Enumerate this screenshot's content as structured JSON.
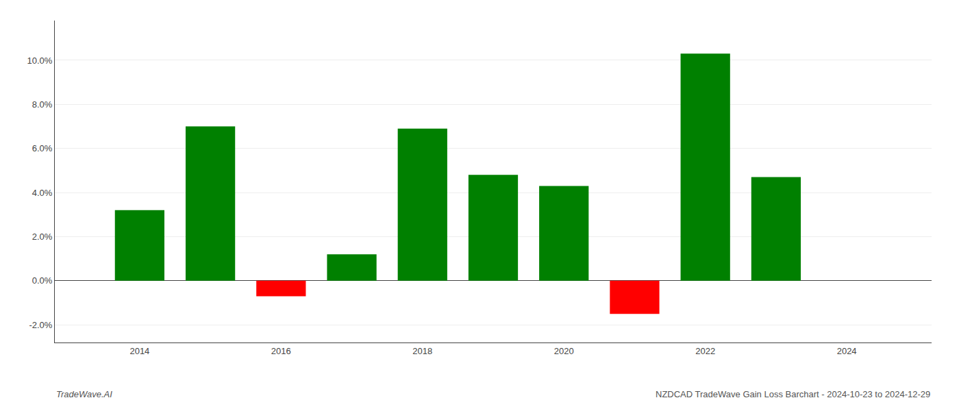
{
  "chart_data": {
    "type": "bar",
    "x": [
      2014,
      2015,
      2016,
      2017,
      2018,
      2019,
      2020,
      2021,
      2022,
      2023
    ],
    "values": [
      0.032,
      0.07,
      -0.007,
      0.012,
      0.069,
      0.048,
      0.043,
      -0.015,
      0.103,
      0.047
    ],
    "colors": [
      "#008000",
      "#008000",
      "#ff0000",
      "#008000",
      "#008000",
      "#008000",
      "#008000",
      "#ff0000",
      "#008000",
      "#008000"
    ],
    "xlim": [
      2012.8,
      2025.2
    ],
    "xticks": [
      2014,
      2016,
      2018,
      2020,
      2022,
      2024
    ],
    "ylim": [
      -0.028,
      0.118
    ],
    "yticks": [
      {
        "value": -0.02,
        "label": "-2.0%"
      },
      {
        "value": 0.0,
        "label": "0.0%"
      },
      {
        "value": 0.02,
        "label": "2.0%"
      },
      {
        "value": 0.04,
        "label": "4.0%"
      },
      {
        "value": 0.06,
        "label": "6.0%"
      },
      {
        "value": 0.08,
        "label": "8.0%"
      },
      {
        "value": 0.1,
        "label": "10.0%"
      }
    ],
    "grid": true,
    "annotations": [
      "TradeWave.AI",
      "NZDCAD TradeWave Gain Loss Barchart - 2024-10-23 to 2024-12-29"
    ]
  }
}
